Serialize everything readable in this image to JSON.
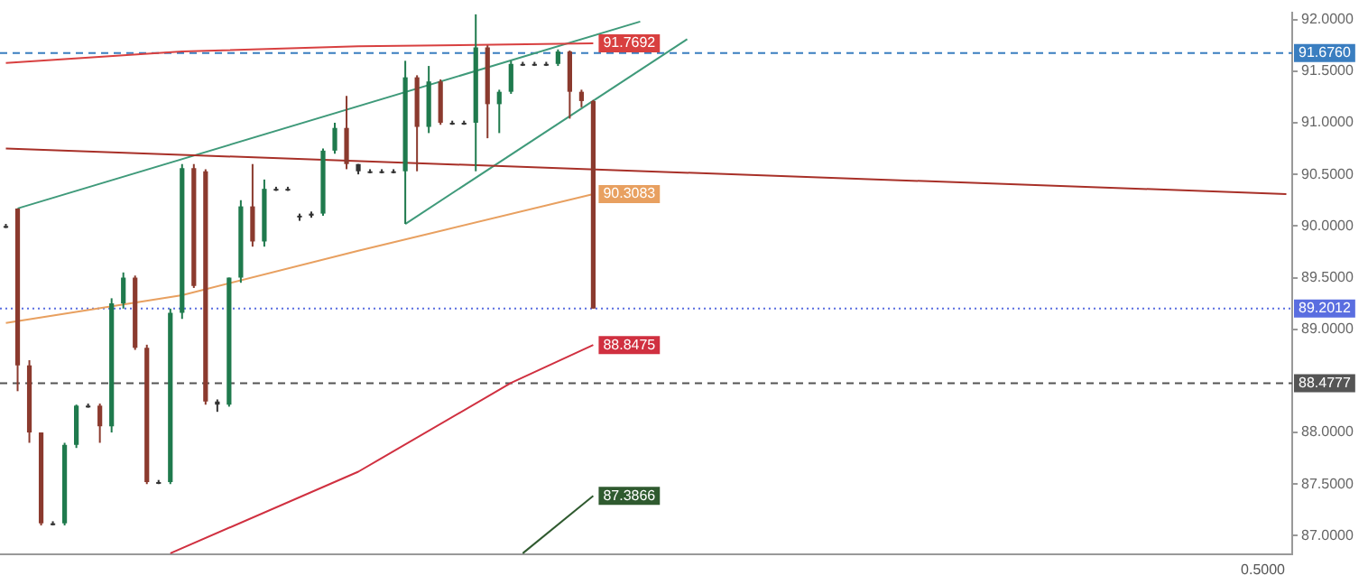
{
  "chart_data": {
    "type": "candlestick",
    "categories": [
      null,
      null,
      null,
      null,
      null,
      null,
      null,
      null,
      null,
      null,
      null,
      null,
      null,
      null,
      null,
      null,
      null,
      null,
      null,
      null,
      null,
      null,
      null,
      null,
      null,
      null,
      null,
      null,
      null,
      null,
      null,
      null,
      null,
      null,
      null,
      null,
      null,
      null,
      null,
      null,
      null,
      null,
      null,
      null,
      null,
      null,
      null,
      null,
      null,
      null,
      null,
      null,
      null,
      null,
      null,
      null,
      null,
      null,
      null,
      null,
      null,
      null,
      null,
      null,
      null,
      null,
      null,
      null,
      null,
      null,
      null,
      null,
      null,
      null,
      null,
      null,
      null,
      null,
      null,
      null,
      null,
      null,
      null,
      null,
      null,
      null,
      null,
      null,
      null,
      null,
      null,
      null,
      null,
      null,
      null,
      null,
      null,
      null,
      null,
      null,
      null,
      null,
      null,
      null,
      null,
      null,
      null,
      null,
      null,
      null
    ],
    "ohlc": [
      [
        90.0,
        90.02,
        89.98,
        90.0
      ],
      [
        90.17,
        90.17,
        88.4,
        88.65
      ],
      [
        88.65,
        88.7,
        87.9,
        88.0
      ],
      [
        88.0,
        88.0,
        87.1,
        87.12
      ],
      [
        87.12,
        87.14,
        87.1,
        87.12
      ],
      [
        87.12,
        87.9,
        87.1,
        87.88
      ],
      [
        87.88,
        88.27,
        87.85,
        88.26
      ],
      [
        88.26,
        88.28,
        88.24,
        88.26
      ],
      [
        88.26,
        88.28,
        87.9,
        88.06
      ],
      [
        88.06,
        89.3,
        88.0,
        89.25
      ],
      [
        89.25,
        89.55,
        89.2,
        89.5
      ],
      [
        89.5,
        89.52,
        88.8,
        88.82
      ],
      [
        88.82,
        88.85,
        87.5,
        87.52
      ],
      [
        87.52,
        87.54,
        87.5,
        87.52
      ],
      [
        87.52,
        89.2,
        87.5,
        89.16
      ],
      [
        89.16,
        90.6,
        89.1,
        90.56
      ],
      [
        90.56,
        90.6,
        89.4,
        89.42
      ],
      [
        90.53,
        90.55,
        88.27,
        88.3
      ],
      [
        88.3,
        88.32,
        88.2,
        88.27
      ],
      [
        88.27,
        89.5,
        88.25,
        89.5
      ],
      [
        89.5,
        90.25,
        89.45,
        90.19
      ],
      [
        90.19,
        90.6,
        89.8,
        89.85
      ],
      [
        89.85,
        90.45,
        89.8,
        90.36
      ],
      [
        90.36,
        90.38,
        90.34,
        90.36
      ],
      [
        90.36,
        90.38,
        90.34,
        90.36
      ],
      [
        90.1,
        90.12,
        90.05,
        90.1
      ],
      [
        90.1,
        90.14,
        90.08,
        90.12
      ],
      [
        90.12,
        90.75,
        90.1,
        90.73
      ],
      [
        90.73,
        91.0,
        90.7,
        90.95
      ],
      [
        90.95,
        91.26,
        90.55,
        90.6
      ],
      [
        90.6,
        90.6,
        90.5,
        90.53
      ],
      [
        90.53,
        90.55,
        90.51,
        90.53
      ],
      [
        90.53,
        90.55,
        90.51,
        90.53
      ],
      [
        90.53,
        90.55,
        90.51,
        90.53
      ],
      [
        90.53,
        91.6,
        90.02,
        91.44
      ],
      [
        91.44,
        91.46,
        90.53,
        90.96
      ],
      [
        90.96,
        91.55,
        90.9,
        91.4
      ],
      [
        91.4,
        91.42,
        90.98,
        91.0
      ],
      [
        91.0,
        91.02,
        90.98,
        91.0
      ],
      [
        91.0,
        91.02,
        90.98,
        91.0
      ],
      [
        91.0,
        92.05,
        90.53,
        91.73
      ],
      [
        91.73,
        91.75,
        90.85,
        91.18
      ],
      [
        91.18,
        91.32,
        90.9,
        91.3
      ],
      [
        91.3,
        91.6,
        91.28,
        91.57
      ],
      [
        91.57,
        91.59,
        91.55,
        91.57
      ],
      [
        91.57,
        91.59,
        91.55,
        91.57
      ],
      [
        91.57,
        91.59,
        91.55,
        91.57
      ],
      [
        91.57,
        91.71,
        91.55,
        91.69
      ],
      [
        91.69,
        91.7,
        91.04,
        91.3
      ],
      [
        91.3,
        91.32,
        91.15,
        91.21
      ],
      [
        91.21,
        91.22,
        89.2012,
        89.2012
      ],
      null,
      null,
      null,
      null,
      null,
      null,
      null,
      null,
      null,
      null,
      null,
      null,
      null,
      null,
      null,
      null,
      null,
      null,
      null,
      null,
      null,
      null,
      null,
      null,
      null,
      null,
      null,
      null,
      null,
      null,
      null,
      null,
      null,
      null,
      null,
      null,
      null,
      null,
      null,
      null,
      null,
      null,
      null,
      null,
      null,
      null,
      null,
      null,
      null,
      null,
      null,
      null,
      null,
      null,
      null,
      null,
      null,
      null,
      null
    ],
    "colors": [
      "#333333",
      "#8b3a2e",
      "#8b3a2e",
      "#8b3a2e",
      "#333333",
      "#1f7a4d",
      "#1f7a4d",
      "#333333",
      "#8b3a2e",
      "#1f7a4d",
      "#1f7a4d",
      "#8b3a2e",
      "#8b3a2e",
      "#333333",
      "#1f7a4d",
      "#1f7a4d",
      "#8b3a2e",
      "#8b3a2e",
      "#333333",
      "#1f7a4d",
      "#1f7a4d",
      "#8b3a2e",
      "#1f7a4d",
      "#333333",
      "#333333",
      "#333333",
      "#333333",
      "#1f7a4d",
      "#1f7a4d",
      "#8b3a2e",
      "#333333",
      "#333333",
      "#333333",
      "#333333",
      "#1f7a4d",
      "#8b3a2e",
      "#1f7a4d",
      "#8b3a2e",
      "#333333",
      "#333333",
      "#1f7a4d",
      "#8b3a2e",
      "#1f7a4d",
      "#1f7a4d",
      "#333333",
      "#333333",
      "#333333",
      "#1f7a4d",
      "#8b3a2e",
      "#8b3a2e",
      "#8b3a2e",
      null,
      null,
      null,
      null,
      null,
      null,
      null,
      null,
      null,
      null,
      null,
      null,
      null,
      null,
      null,
      null,
      null,
      null,
      null,
      null,
      null,
      null,
      null,
      null,
      null,
      null,
      null,
      null,
      null,
      null,
      null,
      null,
      null,
      null,
      null,
      null,
      null,
      null,
      null,
      null,
      null,
      null,
      null,
      null,
      null,
      null,
      null,
      null,
      null,
      null,
      null,
      null,
      null,
      null,
      null,
      null,
      null,
      null,
      null
    ],
    "series": [
      {
        "type": "line",
        "color": "#d84040",
        "values": [
          91.58,
          null,
          null,
          null,
          null,
          null,
          null,
          null,
          null,
          null,
          null,
          null,
          null,
          null,
          null,
          91.69,
          null,
          null,
          null,
          null,
          null,
          null,
          null,
          null,
          null,
          null,
          null,
          null,
          null,
          null,
          91.74,
          null,
          null,
          null,
          null,
          null,
          null,
          null,
          null,
          null,
          null,
          null,
          null,
          null,
          null,
          null,
          null,
          null,
          null,
          null,
          91.7692,
          null,
          null,
          null,
          null,
          null,
          null,
          null,
          null,
          null,
          null,
          null,
          null,
          null,
          null,
          null,
          null,
          null,
          null,
          null,
          null,
          null,
          null,
          null,
          null,
          null,
          null,
          null,
          null,
          null,
          null,
          null,
          null,
          null,
          null,
          null,
          null,
          null,
          null,
          null,
          null,
          null,
          null,
          null,
          null,
          null,
          null,
          null,
          null,
          null,
          null,
          null,
          null,
          null,
          null,
          null,
          null,
          null,
          null,
          null
        ],
        "value_labels": [
          null,
          null,
          null,
          null,
          null,
          null,
          null,
          null,
          null,
          null,
          null,
          null,
          null,
          null,
          null,
          null,
          null,
          null,
          null,
          null,
          null,
          null,
          null,
          null,
          null,
          null,
          null,
          null,
          null,
          null,
          null,
          null,
          null,
          null,
          null,
          null,
          null,
          null,
          null,
          null,
          null,
          null,
          null,
          null,
          null,
          null,
          null,
          null,
          null,
          null,
          "91.7692",
          null,
          null,
          null,
          null,
          null,
          null,
          null,
          null,
          null,
          null,
          null,
          null,
          null,
          null,
          null,
          null,
          null,
          null,
          null,
          null,
          null,
          null,
          null,
          null,
          null,
          null,
          null,
          null,
          null,
          null,
          null,
          null,
          null,
          null,
          null,
          null,
          null,
          null,
          null,
          null,
          null,
          null,
          null,
          null,
          null,
          null,
          null,
          null,
          null,
          null,
          null,
          null,
          null,
          null,
          null,
          null,
          null,
          null,
          null
        ]
      },
      {
        "type": "line",
        "color": "#a83028",
        "values": [
          90.75,
          null,
          null,
          null,
          null,
          null,
          null,
          null,
          null,
          null,
          null,
          null,
          null,
          null,
          null,
          null,
          null,
          null,
          null,
          null,
          null,
          null,
          null,
          null,
          null,
          null,
          null,
          null,
          null,
          null,
          null,
          null,
          null,
          null,
          null,
          null,
          null,
          null,
          null,
          null,
          null,
          null,
          null,
          null,
          null,
          null,
          null,
          null,
          null,
          null,
          null,
          null,
          null,
          null,
          null,
          null,
          null,
          null,
          null,
          null,
          null,
          null,
          null,
          null,
          null,
          null,
          null,
          null,
          null,
          null,
          null,
          null,
          null,
          null,
          null,
          null,
          null,
          null,
          null,
          null,
          null,
          null,
          null,
          null,
          null,
          null,
          null,
          null,
          null,
          null,
          null,
          null,
          null,
          null,
          null,
          null,
          null,
          null,
          null,
          null,
          null,
          null,
          null,
          null,
          null,
          null,
          null,
          null,
          null,
          90.31
        ]
      },
      {
        "type": "line",
        "color": "#e8a060",
        "values": [
          89.06,
          null,
          null,
          null,
          null,
          null,
          null,
          null,
          null,
          null,
          null,
          null,
          null,
          null,
          null,
          89.33,
          null,
          null,
          null,
          null,
          null,
          null,
          null,
          null,
          null,
          null,
          null,
          null,
          null,
          null,
          89.76,
          null,
          null,
          null,
          null,
          null,
          null,
          null,
          null,
          null,
          null,
          null,
          null,
          null,
          null,
          null,
          null,
          null,
          null,
          null,
          90.3083,
          null,
          null,
          null,
          null,
          null,
          null,
          null,
          null,
          null,
          null,
          null,
          null,
          null,
          null,
          null,
          null,
          null,
          null,
          null,
          null,
          null,
          null,
          null,
          null,
          null,
          null,
          null,
          null,
          null,
          null,
          null,
          null,
          null,
          null,
          null,
          null,
          null,
          null,
          null,
          null,
          null,
          null,
          null,
          null,
          null,
          null,
          null,
          null,
          null,
          null,
          null,
          null,
          null,
          null,
          null,
          null,
          null,
          null,
          null
        ],
        "value_labels": [
          null,
          null,
          null,
          null,
          null,
          null,
          null,
          null,
          null,
          null,
          null,
          null,
          null,
          null,
          null,
          null,
          null,
          null,
          null,
          null,
          null,
          null,
          null,
          null,
          null,
          null,
          null,
          null,
          null,
          null,
          null,
          null,
          null,
          null,
          null,
          null,
          null,
          null,
          null,
          null,
          null,
          null,
          null,
          null,
          null,
          null,
          null,
          null,
          null,
          null,
          "90.3083",
          null,
          null,
          null,
          null,
          null,
          null,
          null,
          null,
          null,
          null,
          null,
          null,
          null,
          null,
          null,
          null,
          null,
          null,
          null,
          null,
          null,
          null,
          null,
          null,
          null,
          null,
          null,
          null,
          null,
          null,
          null,
          null,
          null,
          null,
          null,
          null,
          null,
          null,
          null,
          null,
          null,
          null,
          null,
          null,
          null,
          null,
          null,
          null,
          null,
          null,
          null,
          null,
          null,
          null,
          null,
          null,
          null,
          null,
          null
        ]
      },
      {
        "type": "line",
        "color": "#d03040",
        "values": [
          null,
          null,
          null,
          null,
          null,
          null,
          null,
          null,
          null,
          null,
          null,
          null,
          null,
          null,
          86.83,
          null,
          null,
          null,
          null,
          null,
          null,
          null,
          null,
          null,
          null,
          null,
          null,
          null,
          null,
          null,
          87.62,
          null,
          null,
          null,
          null,
          null,
          null,
          null,
          null,
          null,
          null,
          null,
          null,
          88.48,
          null,
          null,
          null,
          null,
          null,
          null,
          88.8475,
          null,
          null,
          null,
          null,
          null,
          null,
          null,
          null,
          null,
          null,
          null,
          null,
          null,
          null,
          null,
          null,
          null,
          null,
          null,
          null,
          null,
          null,
          null,
          null,
          null,
          null,
          null,
          null,
          null,
          null,
          null,
          null,
          null,
          null,
          null,
          null,
          null,
          null,
          null,
          null,
          null,
          null,
          null,
          null,
          null,
          null,
          null,
          null,
          null,
          null,
          null,
          null,
          null,
          null,
          null,
          null,
          null,
          null,
          null
        ],
        "value_labels": [
          null,
          null,
          null,
          null,
          null,
          null,
          null,
          null,
          null,
          null,
          null,
          null,
          null,
          null,
          null,
          null,
          null,
          null,
          null,
          null,
          null,
          null,
          null,
          null,
          null,
          null,
          null,
          null,
          null,
          null,
          null,
          null,
          null,
          null,
          null,
          null,
          null,
          null,
          null,
          null,
          null,
          null,
          null,
          null,
          null,
          null,
          null,
          null,
          null,
          null,
          "88.8475",
          null,
          null,
          null,
          null,
          null,
          null,
          null,
          null,
          null,
          null,
          null,
          null,
          null,
          null,
          null,
          null,
          null,
          null,
          null,
          null,
          null,
          null,
          null,
          null,
          null,
          null,
          null,
          null,
          null,
          null,
          null,
          null,
          null,
          null,
          null,
          null,
          null,
          null,
          null,
          null,
          null,
          null,
          null,
          null,
          null,
          null,
          null,
          null,
          null,
          null,
          null,
          null,
          null,
          null,
          null,
          null,
          null,
          null,
          null
        ]
      },
      {
        "type": "line",
        "color": "#2f5a2f",
        "values": [
          null,
          null,
          null,
          null,
          null,
          null,
          null,
          null,
          null,
          null,
          null,
          null,
          null,
          null,
          null,
          null,
          null,
          null,
          null,
          null,
          null,
          null,
          null,
          null,
          null,
          null,
          null,
          null,
          null,
          null,
          null,
          null,
          null,
          null,
          null,
          null,
          null,
          null,
          null,
          null,
          null,
          null,
          null,
          null,
          86.83,
          null,
          null,
          null,
          null,
          null,
          87.3866,
          null,
          null,
          null,
          null,
          null,
          null,
          null,
          null,
          null,
          null,
          null,
          null,
          null,
          null,
          null,
          null,
          null,
          null,
          null,
          null,
          null,
          null,
          null,
          null,
          null,
          null,
          null,
          null,
          null,
          null,
          null,
          null,
          null,
          null,
          null,
          null,
          null,
          null,
          null,
          null,
          null,
          null,
          null,
          null,
          null,
          null,
          null,
          null,
          null,
          null,
          null,
          null,
          null,
          null,
          null,
          null,
          null,
          null,
          null
        ],
        "value_labels": [
          null,
          null,
          null,
          null,
          null,
          null,
          null,
          null,
          null,
          null,
          null,
          null,
          null,
          null,
          null,
          null,
          null,
          null,
          null,
          null,
          null,
          null,
          null,
          null,
          null,
          null,
          null,
          null,
          null,
          null,
          null,
          null,
          null,
          null,
          null,
          null,
          null,
          null,
          null,
          null,
          null,
          null,
          null,
          null,
          null,
          null,
          null,
          null,
          null,
          null,
          "87.3866",
          null,
          null,
          null,
          null,
          null,
          null,
          null,
          null,
          null,
          null,
          null,
          null,
          null,
          null,
          null,
          null,
          null,
          null,
          null,
          null,
          null,
          null,
          null,
          null,
          null,
          null,
          null,
          null,
          null,
          null,
          null,
          null,
          null,
          null,
          null,
          null,
          null,
          null,
          null,
          null,
          null,
          null,
          null,
          null,
          null,
          null,
          null,
          null,
          null,
          null,
          null,
          null,
          null,
          null,
          null,
          null,
          null,
          null,
          null
        ]
      },
      {
        "type": "line",
        "color": "#3f9a7a",
        "values": [
          null,
          90.17,
          null,
          null,
          null,
          null,
          null,
          null,
          null,
          null,
          null,
          null,
          null,
          null,
          null,
          null,
          null,
          null,
          null,
          null,
          null,
          null,
          null,
          null,
          null,
          null,
          null,
          null,
          null,
          null,
          null,
          null,
          null,
          null,
          null,
          null,
          null,
          null,
          null,
          null,
          null,
          null,
          null,
          null,
          null,
          null,
          null,
          null,
          null,
          null,
          null,
          null,
          null,
          null,
          91.98,
          null,
          null,
          null,
          null,
          null,
          null,
          null,
          null,
          null,
          null,
          null,
          null,
          null,
          null,
          null,
          null,
          null,
          null,
          null,
          null,
          null,
          null,
          null,
          null,
          null,
          null,
          null,
          null,
          null,
          null,
          null,
          null,
          null,
          null,
          null,
          null,
          null,
          null,
          null,
          null,
          null,
          null,
          null,
          null,
          null,
          null,
          null,
          null,
          null,
          null,
          null,
          null,
          null,
          null,
          null
        ]
      },
      {
        "type": "line",
        "color": "#3f9a7a",
        "values": [
          null,
          null,
          null,
          null,
          null,
          null,
          null,
          null,
          null,
          null,
          null,
          null,
          null,
          null,
          null,
          null,
          null,
          null,
          null,
          null,
          null,
          null,
          null,
          null,
          null,
          null,
          null,
          null,
          null,
          null,
          null,
          null,
          null,
          null,
          90.02,
          null,
          null,
          null,
          null,
          null,
          null,
          null,
          null,
          null,
          null,
          null,
          null,
          null,
          null,
          null,
          null,
          null,
          null,
          null,
          null,
          null,
          null,
          null,
          91.81,
          null,
          null,
          null,
          null,
          null,
          null,
          null,
          null,
          null,
          null,
          null,
          null,
          null,
          null,
          null,
          null,
          null,
          null,
          null,
          null,
          null,
          null,
          null,
          null,
          null,
          null,
          null,
          null,
          null,
          null,
          null,
          null,
          null,
          null,
          null,
          null,
          null,
          null,
          null,
          null,
          null,
          null,
          null,
          null,
          null,
          null,
          null,
          null,
          null,
          null,
          null
        ]
      }
    ],
    "ylim": [
      86.82,
      92.07
    ],
    "yticks": [
      {
        "value": 92,
        "label": "92.0000"
      },
      {
        "value": 91.5,
        "label": "91.5000"
      },
      {
        "value": 91,
        "label": "91.0000"
      },
      {
        "value": 90.5,
        "label": "90.5000"
      },
      {
        "value": 90,
        "label": "90.0000"
      },
      {
        "value": 89.5,
        "label": "89.5000"
      },
      {
        "value": 89,
        "label": "89.0000"
      },
      {
        "value": 88,
        "label": "88.0000"
      },
      {
        "value": 87.5,
        "label": "87.5000"
      },
      {
        "value": 87,
        "label": "87.0000"
      }
    ],
    "tick_labels": "y",
    "ref_lines": [
      {
        "axis": "y",
        "value": 91.676,
        "label": "91.6760",
        "color": "#3a7ec0",
        "line_style": "dashed"
      },
      {
        "axis": "y",
        "value": 89.2012,
        "label": "89.2012",
        "color": "#5a6ee0",
        "line_style": "dotted"
      },
      {
        "axis": "y",
        "value": 88.4777,
        "label": "88.4777",
        "color": "#555555",
        "line_style": "dashed"
      }
    ],
    "annotations": [
      "0.5000"
    ]
  }
}
